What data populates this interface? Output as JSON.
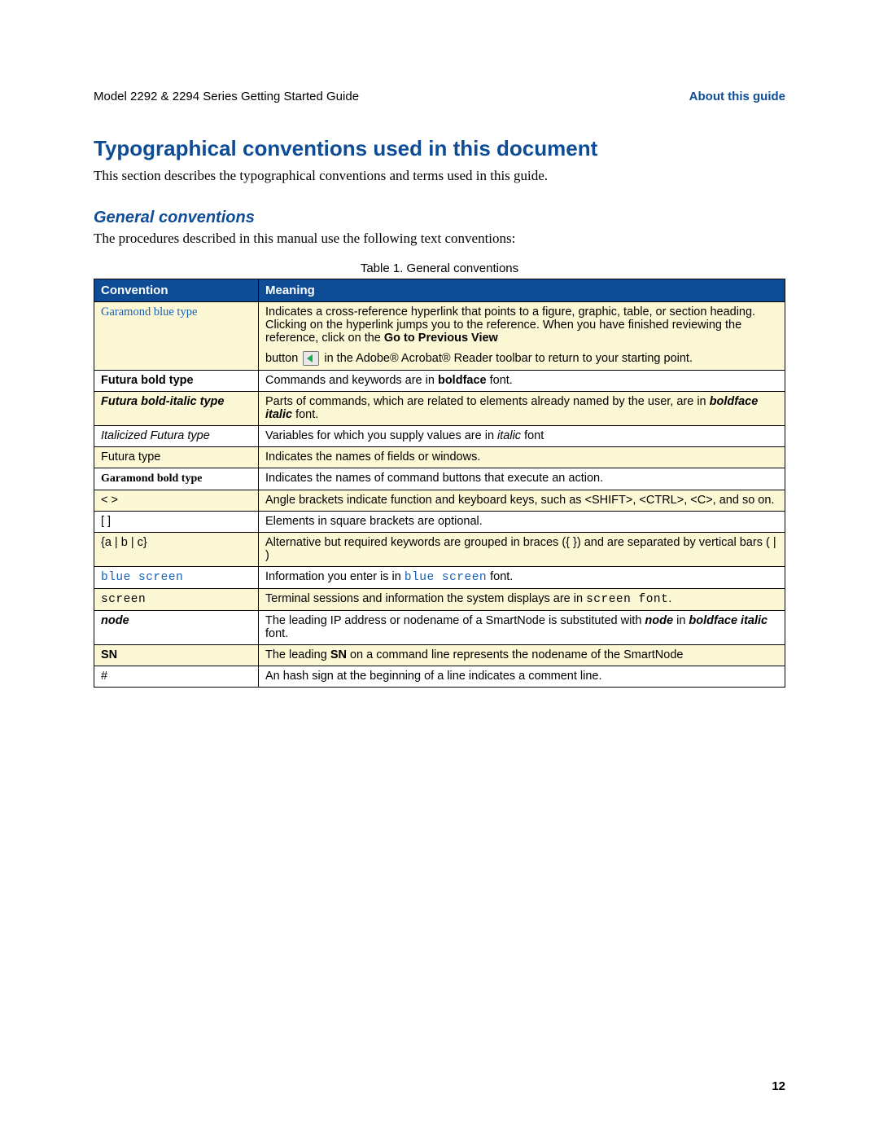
{
  "header": {
    "left": "Model 2292 & 2294 Series Getting Started Guide",
    "right": "About this guide"
  },
  "h1": "Typographical conventions used in this document",
  "intro": "This section describes the typographical conventions and terms used in this guide.",
  "h2": "General conventions",
  "sub": "The procedures described in this manual use the following text conventions:",
  "caption": "Table 1. General conventions",
  "columns": [
    "Convention",
    "Meaning"
  ],
  "pageNumber": "12",
  "colors": {
    "header_bg": "#0e4c96",
    "header_text": "#ffffff",
    "alt_row_bg": "#fcf7d4",
    "link_blue": "#1860b5"
  },
  "rows": [
    {
      "alt": true,
      "conv_class": "garamond-blue",
      "conv": "Garamond blue type",
      "meaning_html": "Indicates a cross-reference hyperlink that points to a figure, graphic, table, or section heading. Clicking on the hyperlink jumps you to the reference. When you have finished reviewing the reference, click on the <b>Go to Previous View</b><div style='height:8px'></div>button <span class='icon-prev' data-name='go-previous-icon' data-interactable='false'></span> in the Adobe® Acrobat® Reader toolbar to return to your starting point."
    },
    {
      "alt": false,
      "conv_class": "futura-bold",
      "conv": "Futura bold type",
      "meaning_html": "Commands and keywords are in <b>boldface</b> font."
    },
    {
      "alt": true,
      "conv_class": "futura-bi",
      "conv": "Futura bold-italic type",
      "meaning_html": "Parts of commands, which are related to elements already named by the user, are in <b><i>boldface italic</i></b> font."
    },
    {
      "alt": false,
      "conv_class": "futura-it",
      "conv": "Italicized Futura type",
      "meaning_html": "Variables for which you supply values are in <i>italic</i> font"
    },
    {
      "alt": true,
      "conv_class": "plain",
      "conv": "Futura type",
      "meaning_html": "Indicates the names of fields or windows."
    },
    {
      "alt": false,
      "conv_class": "garamond-bold",
      "conv": "Garamond bold type",
      "meaning_html": "Indicates the names of command buttons that execute an action."
    },
    {
      "alt": true,
      "conv_class": "plain",
      "conv": "< >",
      "meaning_html": "Angle brackets indicate function and keyboard keys, such as &lt;SHIFT&gt;, &lt;CTRL&gt;, &lt;C&gt;, and so on."
    },
    {
      "alt": false,
      "conv_class": "plain",
      "conv": "[ ]",
      "meaning_html": "Elements in square brackets are optional."
    },
    {
      "alt": true,
      "conv_class": "plain",
      "conv": "{a | b | c}",
      "meaning_html": "Alternative but required keywords are grouped in braces ({ }) and are separated by vertical bars ( | )"
    },
    {
      "alt": false,
      "conv_class": "mono-blue",
      "conv": "blue screen",
      "meaning_html": "Information you enter is in <span class='mono-blue'>blue screen</span> font."
    },
    {
      "alt": true,
      "conv_class": "mono",
      "conv": "screen",
      "meaning_html": "Terminal sessions and information the system displays are in <span class='mono'>screen font</span>."
    },
    {
      "alt": false,
      "conv_class": "futura-bi",
      "conv": "node",
      "meaning_html": "The leading IP address or nodename of a SmartNode is substituted with <b><i>node</i></b> in <b><i>boldface italic</i></b> font."
    },
    {
      "alt": true,
      "conv_class": "futura-bold",
      "conv": "SN",
      "meaning_html": "The leading <b>SN</b> on a command line represents the nodename of the SmartNode"
    },
    {
      "alt": false,
      "conv_class": "plain",
      "conv": "#",
      "meaning_html": "An hash sign at the beginning of a line indicates a comment line."
    }
  ]
}
